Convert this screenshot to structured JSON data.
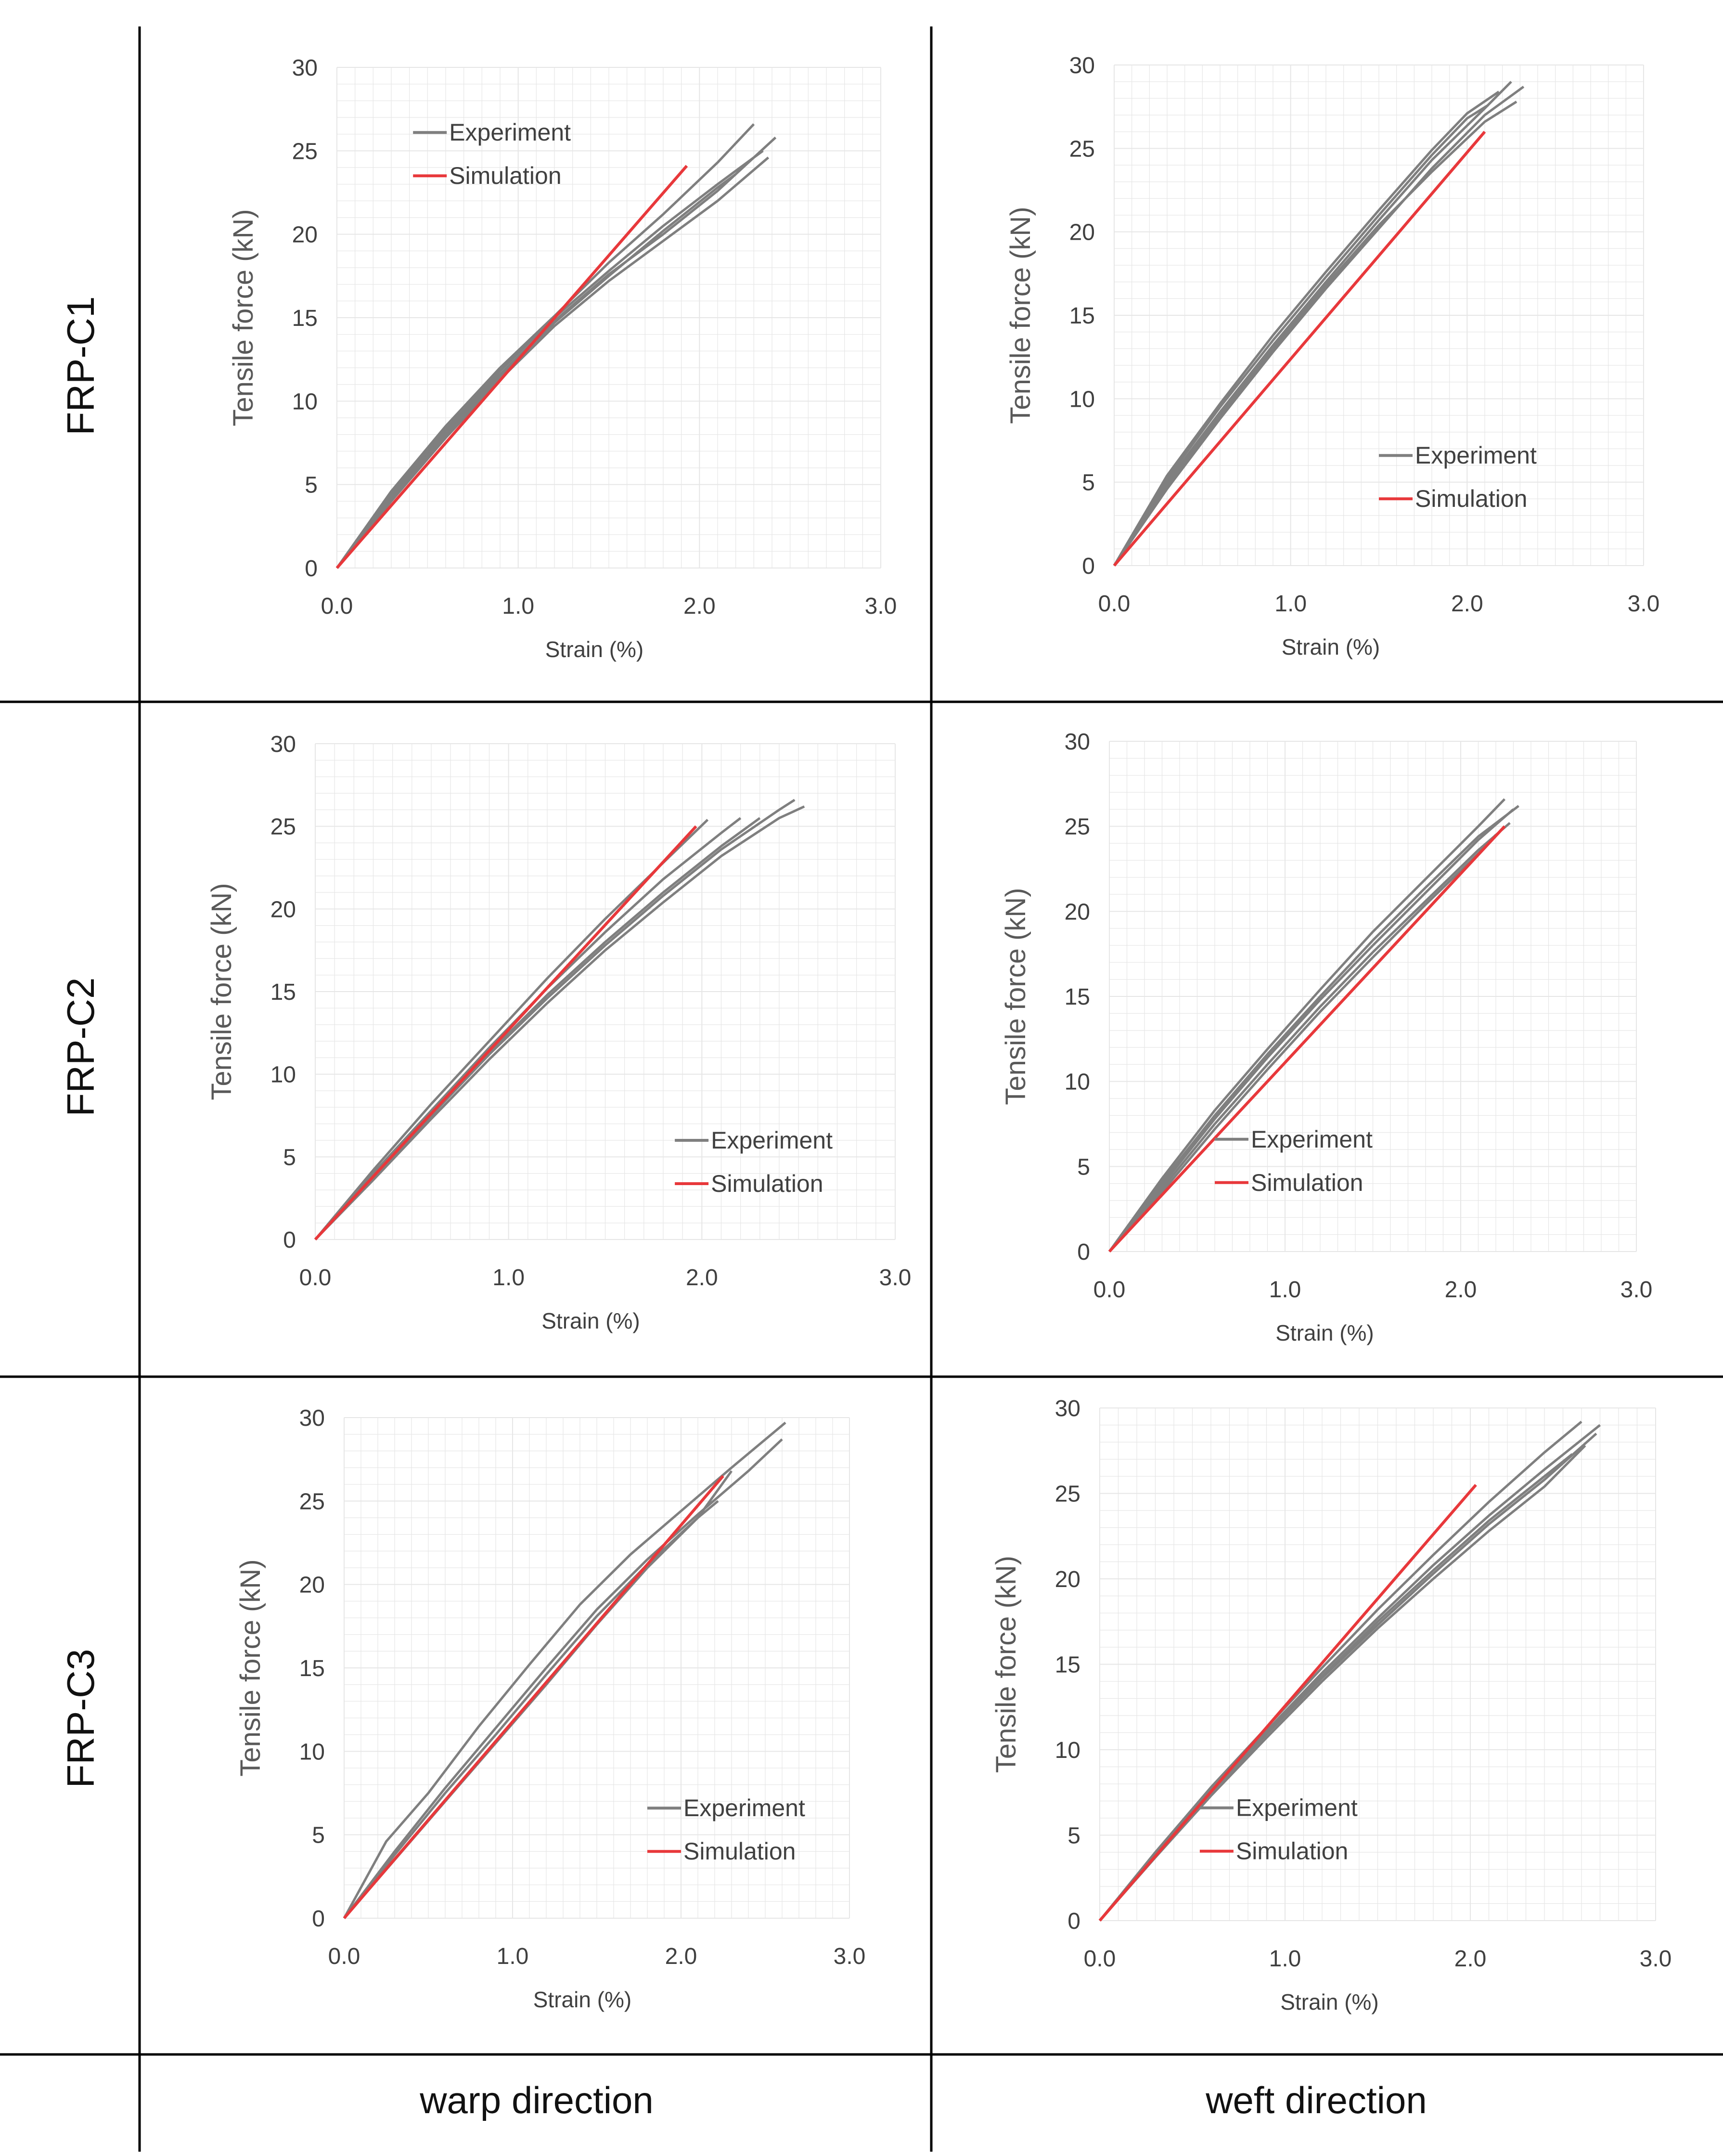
{
  "figure": {
    "row_labels": [
      "FRP-C1",
      "FRP-C2",
      "FRP-C3"
    ],
    "column_labels": [
      "warp direction",
      "weft direction"
    ],
    "colors": {
      "experiment": "#7f7f7f",
      "simulation": "#e8383b",
      "gridline": "#e6e6e6",
      "frame": "#000000"
    }
  },
  "chart_data": [
    {
      "type": "line",
      "row": "FRP-C1",
      "column": "warp direction",
      "xlabel": "Strain (%)",
      "ylabel": "Tensile force (kN)",
      "xlim": [
        0,
        3.0
      ],
      "ylim": [
        0,
        30
      ],
      "xticks": [
        "0.0",
        "1.0",
        "2.0",
        "3.0"
      ],
      "yticks": [
        "0",
        "5",
        "10",
        "15",
        "20",
        "25",
        "30"
      ],
      "legend": [
        "Experiment",
        "Simulation"
      ],
      "legend_position": "top-left",
      "simulation": {
        "name": "Simulation",
        "x": [
          0,
          1.93
        ],
        "y": [
          0,
          24.1
        ]
      },
      "experiment": [
        {
          "name": "Experiment",
          "x": [
            0,
            0.3,
            0.6,
            0.9,
            1.2,
            1.5,
            1.8,
            2.1,
            2.3
          ],
          "y": [
            0,
            4.6,
            8.5,
            12.0,
            15.1,
            18.3,
            21.2,
            24.3,
            26.6
          ]
        },
        {
          "name": "Experiment",
          "x": [
            0,
            0.3,
            0.6,
            0.9,
            1.2,
            1.5,
            1.8,
            2.1,
            2.42
          ],
          "y": [
            0,
            4.3,
            8.2,
            11.6,
            14.8,
            17.6,
            20.0,
            22.6,
            25.8
          ]
        },
        {
          "name": "Experiment",
          "x": [
            0,
            0.3,
            0.6,
            0.9,
            1.2,
            1.5,
            1.8,
            2.1,
            2.38
          ],
          "y": [
            0,
            4.0,
            7.8,
            11.3,
            14.5,
            17.2,
            19.6,
            22.0,
            24.6
          ]
        },
        {
          "name": "Experiment",
          "x": [
            0,
            0.3,
            0.6,
            0.9,
            1.2,
            1.5,
            1.8,
            2.1,
            2.35
          ],
          "y": [
            0,
            4.4,
            8.3,
            11.8,
            15.0,
            17.8,
            20.5,
            23.0,
            25.0
          ]
        },
        {
          "name": "Experiment",
          "x": [
            0,
            0.3,
            0.6,
            0.9,
            1.2,
            1.5,
            1.8,
            2.1,
            2.2
          ],
          "y": [
            0,
            4.2,
            8.0,
            11.5,
            14.7,
            17.5,
            20.2,
            22.8,
            23.6
          ]
        }
      ]
    },
    {
      "type": "line",
      "row": "FRP-C1",
      "column": "weft direction",
      "xlabel": "Strain (%)",
      "ylabel": "Tensile force (kN)",
      "xlim": [
        0,
        3.0
      ],
      "ylim": [
        0,
        30
      ],
      "xticks": [
        "0.0",
        "1.0",
        "2.0",
        "3.0"
      ],
      "yticks": [
        "0",
        "5",
        "10",
        "15",
        "20",
        "25",
        "30"
      ],
      "legend": [
        "Experiment",
        "Simulation"
      ],
      "legend_position": "center-right",
      "simulation": {
        "name": "Simulation",
        "x": [
          0,
          2.1
        ],
        "y": [
          0,
          26.0
        ]
      },
      "experiment": [
        {
          "name": "Experiment",
          "x": [
            0,
            0.3,
            0.6,
            0.9,
            1.2,
            1.5,
            1.8,
            2.0,
            2.18
          ],
          "y": [
            0,
            5.4,
            9.7,
            13.8,
            17.6,
            21.3,
            24.9,
            27.1,
            28.4
          ]
        },
        {
          "name": "Experiment",
          "x": [
            0,
            0.3,
            0.6,
            0.9,
            1.2,
            1.5,
            1.8,
            2.1,
            2.25
          ],
          "y": [
            0,
            5.0,
            9.2,
            13.2,
            17.0,
            20.7,
            24.3,
            27.4,
            29.0
          ]
        },
        {
          "name": "Experiment",
          "x": [
            0,
            0.3,
            0.6,
            0.9,
            1.2,
            1.5,
            1.8,
            2.1,
            2.32
          ],
          "y": [
            0,
            4.6,
            8.8,
            12.8,
            16.6,
            20.2,
            23.8,
            27.0,
            28.7
          ]
        },
        {
          "name": "Experiment",
          "x": [
            0,
            0.3,
            0.6,
            0.9,
            1.2,
            1.5,
            1.8,
            2.1,
            2.28
          ],
          "y": [
            0,
            4.8,
            9.0,
            13.0,
            16.8,
            20.4,
            23.6,
            26.6,
            27.8
          ]
        },
        {
          "name": "Experiment",
          "x": [
            0,
            0.3,
            0.6,
            0.9,
            1.2,
            1.5,
            1.8,
            2.0,
            2.12
          ],
          "y": [
            0,
            5.2,
            9.5,
            13.5,
            17.3,
            21.0,
            24.6,
            26.8,
            27.6
          ]
        }
      ]
    },
    {
      "type": "line",
      "row": "FRP-C2",
      "column": "warp direction",
      "xlabel": "Strain (%)",
      "ylabel": "Tensile force (kN)",
      "xlim": [
        0,
        3.0
      ],
      "ylim": [
        0,
        30
      ],
      "xticks": [
        "0.0",
        "1.0",
        "2.0",
        "3.0"
      ],
      "yticks": [
        "0",
        "5",
        "10",
        "15",
        "20",
        "25",
        "30"
      ],
      "legend": [
        "Experiment",
        "Simulation"
      ],
      "legend_position": "bottom-right",
      "simulation": {
        "name": "Simulation",
        "x": [
          0,
          1.97
        ],
        "y": [
          0,
          25.0
        ]
      },
      "experiment": [
        {
          "name": "Experiment",
          "x": [
            0,
            0.3,
            0.6,
            0.9,
            1.2,
            1.5,
            1.8,
            2.03
          ],
          "y": [
            0,
            4.2,
            8.2,
            12.0,
            15.8,
            19.4,
            22.8,
            25.4
          ]
        },
        {
          "name": "Experiment",
          "x": [
            0,
            0.3,
            0.6,
            0.9,
            1.2,
            1.5,
            1.8,
            2.1,
            2.2
          ],
          "y": [
            0,
            4.0,
            7.8,
            11.6,
            15.2,
            18.6,
            21.8,
            24.6,
            25.5
          ]
        },
        {
          "name": "Experiment",
          "x": [
            0,
            0.3,
            0.6,
            0.9,
            1.2,
            1.5,
            1.8,
            2.1,
            2.4,
            2.48
          ],
          "y": [
            0,
            3.8,
            7.5,
            11.2,
            14.6,
            17.8,
            20.8,
            23.6,
            26.0,
            26.6
          ]
        },
        {
          "name": "Experiment",
          "x": [
            0,
            0.3,
            0.6,
            0.9,
            1.2,
            1.5,
            1.8,
            2.1,
            2.4,
            2.53
          ],
          "y": [
            0,
            3.6,
            7.3,
            10.9,
            14.3,
            17.5,
            20.4,
            23.2,
            25.5,
            26.2
          ]
        },
        {
          "name": "Experiment",
          "x": [
            0,
            0.3,
            0.6,
            0.9,
            1.2,
            1.5,
            1.8,
            2.1,
            2.3
          ],
          "y": [
            0,
            3.9,
            7.6,
            11.3,
            14.8,
            18.0,
            21.0,
            23.8,
            25.5
          ]
        }
      ]
    },
    {
      "type": "line",
      "row": "FRP-C2",
      "column": "weft direction",
      "xlabel": "Strain (%)",
      "ylabel": "Tensile force (kN)",
      "xlim": [
        0,
        3.0
      ],
      "ylim": [
        0,
        30
      ],
      "xticks": [
        "0.0",
        "1.0",
        "2.0",
        "3.0"
      ],
      "yticks": [
        "0",
        "5",
        "10",
        "15",
        "20",
        "25",
        "30"
      ],
      "legend": [
        "Experiment",
        "Simulation"
      ],
      "legend_position": "bottom-right",
      "simulation": {
        "name": "Simulation",
        "x": [
          0,
          2.25
        ],
        "y": [
          0,
          25.0
        ]
      },
      "experiment": [
        {
          "name": "Experiment",
          "x": [
            0,
            0.3,
            0.6,
            0.9,
            1.2,
            1.5,
            1.8,
            2.1,
            2.25
          ],
          "y": [
            0,
            4.3,
            8.3,
            11.9,
            15.4,
            18.8,
            21.9,
            25.0,
            26.6
          ]
        },
        {
          "name": "Experiment",
          "x": [
            0,
            0.3,
            0.6,
            0.9,
            1.2,
            1.5,
            1.8,
            2.1,
            2.3
          ],
          "y": [
            0,
            3.9,
            7.8,
            11.4,
            14.8,
            18.0,
            21.1,
            24.2,
            26.0
          ]
        },
        {
          "name": "Experiment",
          "x": [
            0,
            0.3,
            0.6,
            0.9,
            1.2,
            1.5,
            1.8,
            2.1,
            2.28
          ],
          "y": [
            0,
            3.7,
            7.5,
            11.0,
            14.4,
            17.6,
            20.6,
            23.6,
            25.2
          ]
        },
        {
          "name": "Experiment",
          "x": [
            0,
            0.3,
            0.6,
            0.9,
            1.2,
            1.5,
            1.8,
            2.1,
            2.33
          ],
          "y": [
            0,
            4.1,
            8.0,
            11.6,
            15.0,
            18.3,
            21.4,
            24.4,
            26.2
          ]
        },
        {
          "name": "Experiment",
          "x": [
            0,
            0.3,
            0.6,
            0.9,
            1.2,
            1.5,
            1.8,
            2.1,
            2.2
          ],
          "y": [
            0,
            3.5,
            7.2,
            10.7,
            14.1,
            17.3,
            20.4,
            23.4,
            24.5
          ]
        }
      ]
    },
    {
      "type": "line",
      "row": "FRP-C3",
      "column": "warp direction",
      "xlabel": "Strain (%)",
      "ylabel": "Tensile force (kN)",
      "xlim": [
        0,
        3.0
      ],
      "ylim": [
        0,
        30
      ],
      "xticks": [
        "0.0",
        "1.0",
        "2.0",
        "3.0"
      ],
      "yticks": [
        "0",
        "5",
        "10",
        "15",
        "20",
        "25",
        "30"
      ],
      "legend": [
        "Experiment",
        "Simulation"
      ],
      "legend_position": "bottom-right",
      "simulation": {
        "name": "Simulation",
        "x": [
          0,
          2.25
        ],
        "y": [
          0,
          26.5
        ]
      },
      "experiment": [
        {
          "name": "Experiment",
          "x": [
            0,
            0.25,
            0.5,
            0.8,
            1.1,
            1.4,
            1.7,
            2.0,
            2.3,
            2.62
          ],
          "y": [
            0,
            4.6,
            7.5,
            11.5,
            15.2,
            18.8,
            21.8,
            24.4,
            27.0,
            29.7
          ]
        },
        {
          "name": "Experiment",
          "x": [
            0,
            0.3,
            0.6,
            0.9,
            1.2,
            1.5,
            1.8,
            2.1,
            2.4,
            2.6
          ],
          "y": [
            0,
            4.0,
            7.8,
            11.4,
            15.0,
            18.5,
            21.5,
            24.2,
            26.8,
            28.7
          ]
        },
        {
          "name": "Experiment",
          "x": [
            0,
            0.3,
            0.6,
            0.9,
            1.2,
            1.5,
            1.8,
            2.1,
            2.3
          ],
          "y": [
            0,
            3.8,
            7.5,
            11.0,
            14.6,
            18.1,
            21.2,
            24.0,
            26.8
          ]
        },
        {
          "name": "Experiment",
          "x": [
            0,
            0.3,
            0.6,
            0.9,
            1.2,
            1.5,
            1.8,
            2.1,
            2.22
          ],
          "y": [
            0,
            3.5,
            7.0,
            10.5,
            14.0,
            17.6,
            21.0,
            24.0,
            25.0
          ]
        }
      ]
    },
    {
      "type": "line",
      "row": "FRP-C3",
      "column": "weft direction",
      "xlabel": "Strain (%)",
      "ylabel": "Tensile force (kN)",
      "xlim": [
        0,
        3.0
      ],
      "ylim": [
        0,
        30
      ],
      "xticks": [
        "0.0",
        "1.0",
        "2.0",
        "3.0"
      ],
      "yticks": [
        "0",
        "5",
        "10",
        "15",
        "20",
        "25",
        "30"
      ],
      "legend": [
        "Experiment",
        "Simulation"
      ],
      "legend_position": "bottom-right",
      "simulation": {
        "name": "Simulation",
        "x": [
          0,
          2.03
        ],
        "y": [
          0,
          25.5
        ]
      },
      "experiment": [
        {
          "name": "Experiment",
          "x": [
            0,
            0.3,
            0.6,
            0.9,
            1.2,
            1.5,
            1.8,
            2.1,
            2.4,
            2.6
          ],
          "y": [
            0,
            4.0,
            7.8,
            11.3,
            14.8,
            18.2,
            21.4,
            24.5,
            27.4,
            29.2
          ]
        },
        {
          "name": "Experiment",
          "x": [
            0,
            0.3,
            0.6,
            0.9,
            1.2,
            1.5,
            1.8,
            2.1,
            2.4,
            2.7
          ],
          "y": [
            0,
            3.9,
            7.6,
            11.1,
            14.5,
            17.7,
            20.8,
            23.7,
            26.4,
            29.0
          ]
        },
        {
          "name": "Experiment",
          "x": [
            0,
            0.3,
            0.6,
            0.9,
            1.2,
            1.5,
            1.8,
            2.1,
            2.4,
            2.68
          ],
          "y": [
            0,
            3.8,
            7.5,
            10.9,
            14.2,
            17.3,
            20.3,
            23.2,
            25.8,
            28.5
          ]
        },
        {
          "name": "Experiment",
          "x": [
            0,
            0.3,
            0.6,
            0.9,
            1.2,
            1.5,
            1.8,
            2.1,
            2.4,
            2.62
          ],
          "y": [
            0,
            3.7,
            7.3,
            10.7,
            14.0,
            17.1,
            20.0,
            22.8,
            25.4,
            27.8
          ]
        },
        {
          "name": "Experiment",
          "x": [
            0,
            0.3,
            0.6,
            0.9,
            1.2,
            1.5,
            1.8,
            2.1,
            2.4,
            2.55
          ],
          "y": [
            0,
            3.9,
            7.5,
            11.0,
            14.3,
            17.5,
            20.5,
            23.4,
            26.0,
            27.3
          ]
        }
      ]
    }
  ]
}
